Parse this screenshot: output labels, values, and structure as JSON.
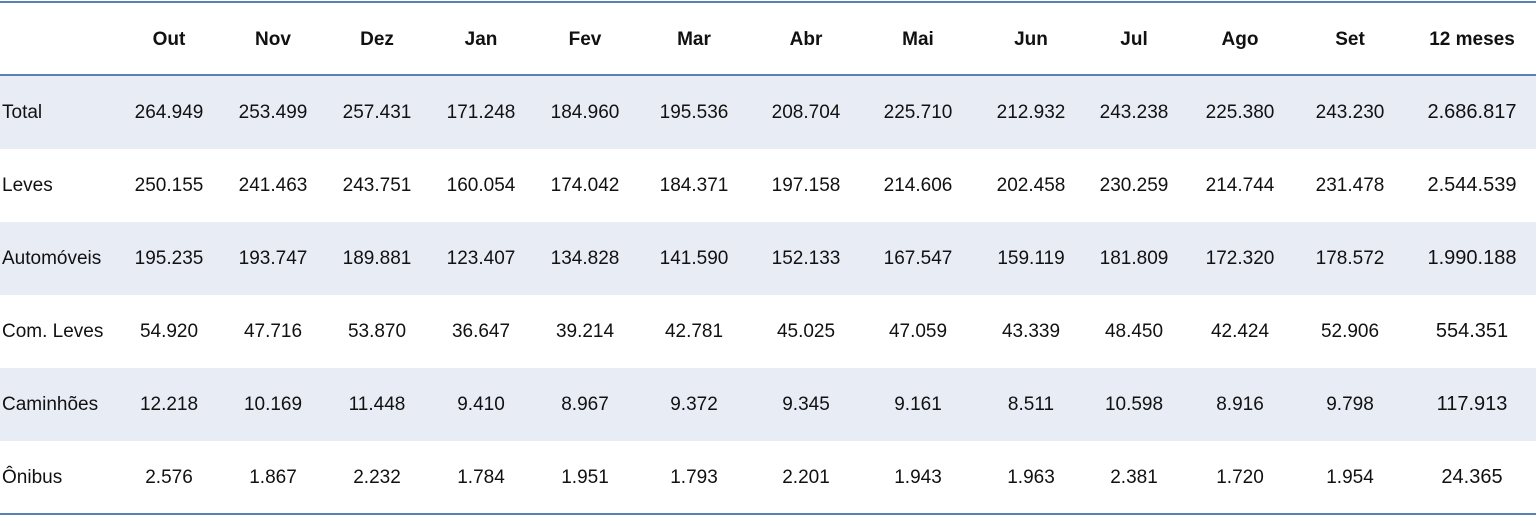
{
  "table": {
    "columns": [
      "Out",
      "Nov",
      "Dez",
      "Jan",
      "Fev",
      "Mar",
      "Abr",
      "Mai",
      "Jun",
      "Jul",
      "Ago",
      "Set",
      "12 meses"
    ],
    "rows": [
      [
        "Total",
        "264.949",
        "253.499",
        "257.431",
        "171.248",
        "184.960",
        "195.536",
        "208.704",
        "225.710",
        "212.932",
        "243.238",
        "225.380",
        "243.230",
        "2.686.817"
      ],
      [
        "Leves",
        "250.155",
        "241.463",
        "243.751",
        "160.054",
        "174.042",
        "184.371",
        "197.158",
        "214.606",
        "202.458",
        "230.259",
        "214.744",
        "231.478",
        "2.544.539"
      ],
      [
        "Automóveis",
        "195.235",
        "193.747",
        "189.881",
        "123.407",
        "134.828",
        "141.590",
        "152.133",
        "167.547",
        "159.119",
        "181.809",
        "172.320",
        "178.572",
        "1.990.188"
      ],
      [
        "Com. Leves",
        "54.920",
        "47.716",
        "53.870",
        "36.647",
        "39.214",
        "42.781",
        "45.025",
        "47.059",
        "43.339",
        "48.450",
        "42.424",
        "52.906",
        "554.351"
      ],
      [
        "Caminhões",
        "12.218",
        "10.169",
        "11.448",
        "9.410",
        "8.967",
        "9.372",
        "9.345",
        "9.161",
        "8.511",
        "10.598",
        "8.916",
        "9.798",
        "117.913"
      ],
      [
        "Ônibus",
        "2.576",
        "1.867",
        "2.232",
        "1.784",
        "1.951",
        "1.793",
        "2.201",
        "1.943",
        "1.963",
        "2.381",
        "1.720",
        "1.954",
        "24.365"
      ]
    ]
  }
}
